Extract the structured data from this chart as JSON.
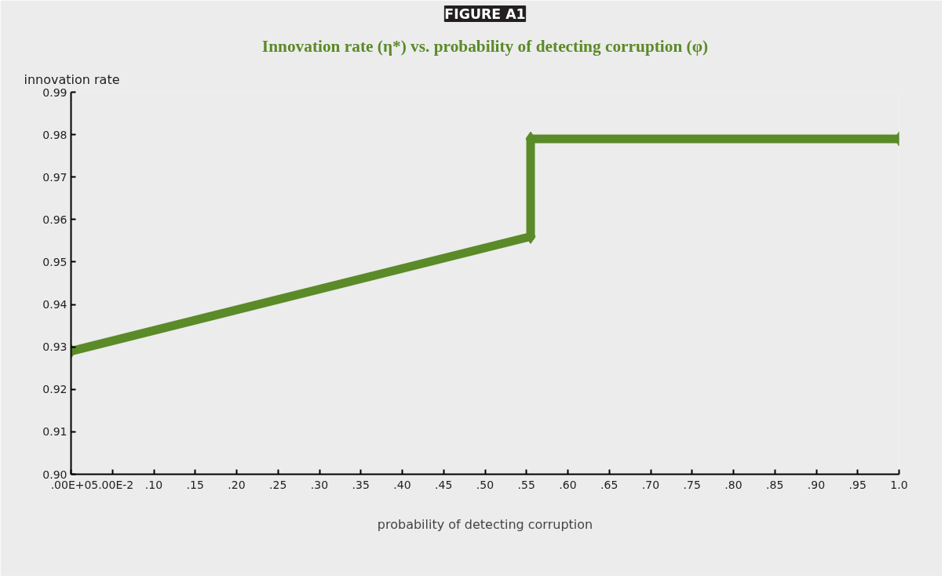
{
  "chart_data": {
    "type": "line",
    "title": "FIGURE A1",
    "subtitle": "Innovation rate (η*) vs. probability of detecting corruption (φ)",
    "xlabel": "probability of detecting corruption",
    "ylabel": "innovation rate",
    "series": [
      {
        "color": "#5b8a28",
        "x": [
          0,
          0.555,
          0.555,
          1.0
        ],
        "values": [
          0.929,
          0.956,
          0.979,
          0.979
        ]
      }
    ],
    "xlim": [
      0,
      1.0
    ],
    "ylim": [
      0.9,
      0.99
    ],
    "xticks": [
      {
        "value": 0,
        "label": ".00E+0"
      },
      {
        "value": 0.05,
        "label": "5.00E-2"
      },
      {
        "value": 0.1,
        "label": ".10"
      },
      {
        "value": 0.15,
        "label": ".15"
      },
      {
        "value": 0.2,
        "label": ".20"
      },
      {
        "value": 0.25,
        "label": ".25"
      },
      {
        "value": 0.3,
        "label": ".30"
      },
      {
        "value": 0.35,
        "label": ".35"
      },
      {
        "value": 0.4,
        "label": ".40"
      },
      {
        "value": 0.45,
        "label": ".45"
      },
      {
        "value": 0.5,
        "label": ".50"
      },
      {
        "value": 0.55,
        "label": ".55"
      },
      {
        "value": 0.6,
        "label": ".60"
      },
      {
        "value": 0.65,
        "label": ".65"
      },
      {
        "value": 0.7,
        "label": ".70"
      },
      {
        "value": 0.75,
        "label": ".75"
      },
      {
        "value": 0.8,
        "label": ".80"
      },
      {
        "value": 0.85,
        "label": ".85"
      },
      {
        "value": 0.9,
        "label": ".90"
      },
      {
        "value": 0.95,
        "label": ".95"
      },
      {
        "value": 1.0,
        "label": "1.0"
      }
    ],
    "yticks": [
      {
        "value": 0.9,
        "label": "0.90"
      },
      {
        "value": 0.91,
        "label": "0.91"
      },
      {
        "value": 0.92,
        "label": "0.92"
      },
      {
        "value": 0.93,
        "label": "0.93"
      },
      {
        "value": 0.94,
        "label": "0.94"
      },
      {
        "value": 0.95,
        "label": "0.95"
      },
      {
        "value": 0.96,
        "label": "0.96"
      },
      {
        "value": 0.97,
        "label": "0.97"
      },
      {
        "value": 0.98,
        "label": "0.98"
      },
      {
        "value": 0.99,
        "label": "0.99"
      }
    ],
    "grid": false,
    "marker": "diamond",
    "line_style": "solid"
  }
}
